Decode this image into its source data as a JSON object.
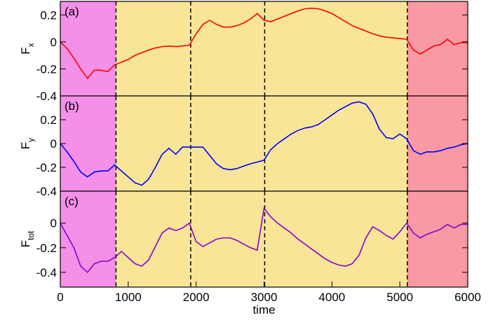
{
  "chart_data": [
    {
      "type": "line",
      "annotation": "(a)",
      "ylabel": "F",
      "ylabel_subscript": "x",
      "xlim": [
        0,
        6000
      ],
      "ylim": [
        -0.4,
        0.3
      ],
      "yticks": [
        -0.4,
        -0.2,
        0,
        0.2
      ],
      "regions": [
        {
          "from": 0,
          "to": 820,
          "color": "#f490e8"
        },
        {
          "from": 820,
          "to": 5110,
          "color": "#f8e598"
        },
        {
          "from": 5110,
          "to": 6000,
          "color": "#f899a3"
        }
      ],
      "dividers": [
        820,
        1920,
        3010,
        5110
      ],
      "x": [
        0,
        100,
        200,
        300,
        400,
        500,
        600,
        700,
        800,
        900,
        1000,
        1100,
        1200,
        1300,
        1400,
        1500,
        1600,
        1700,
        1800,
        1900,
        2000,
        2100,
        2200,
        2300,
        2400,
        2500,
        2600,
        2700,
        2800,
        2900,
        3000,
        3100,
        3200,
        3300,
        3400,
        3500,
        3600,
        3700,
        3800,
        3900,
        4000,
        4100,
        4200,
        4300,
        4400,
        4500,
        4600,
        4700,
        4800,
        4900,
        5000,
        5100,
        5200,
        5300,
        5400,
        5500,
        5600,
        5700,
        5800,
        5900,
        6000
      ],
      "series": [
        {
          "color": "#ff0000",
          "values": [
            0,
            -0.05,
            -0.12,
            -0.2,
            -0.27,
            -0.21,
            -0.21,
            -0.22,
            -0.17,
            -0.15,
            -0.13,
            -0.1,
            -0.08,
            -0.06,
            -0.045,
            -0.035,
            -0.03,
            -0.035,
            -0.03,
            -0.025,
            0.06,
            0.13,
            0.16,
            0.13,
            0.11,
            0.11,
            0.12,
            0.14,
            0.17,
            0.21,
            0.16,
            0.15,
            0.17,
            0.19,
            0.21,
            0.23,
            0.245,
            0.25,
            0.245,
            0.23,
            0.21,
            0.18,
            0.15,
            0.12,
            0.1,
            0.08,
            0.06,
            0.045,
            0.035,
            0.03,
            0.025,
            0.02,
            -0.06,
            -0.09,
            -0.06,
            -0.03,
            -0.02,
            0.02,
            -0.02,
            -0.005,
            -0.005
          ]
        }
      ]
    },
    {
      "type": "line",
      "annotation": "(b)",
      "ylabel": "F",
      "ylabel_subscript": "y",
      "xlim": [
        0,
        6000
      ],
      "ylim": [
        -0.4,
        0.4
      ],
      "yticks": [
        -0.4,
        -0.2,
        0,
        0.2
      ],
      "regions": [
        {
          "from": 0,
          "to": 820,
          "color": "#f490e8"
        },
        {
          "from": 820,
          "to": 5110,
          "color": "#f8e598"
        },
        {
          "from": 5110,
          "to": 6000,
          "color": "#f899a3"
        }
      ],
      "dividers": [
        820,
        1920,
        3010,
        5110
      ],
      "x": [
        0,
        100,
        200,
        300,
        400,
        500,
        600,
        700,
        800,
        900,
        1000,
        1100,
        1200,
        1300,
        1400,
        1500,
        1600,
        1700,
        1800,
        1900,
        2000,
        2100,
        2200,
        2300,
        2400,
        2500,
        2600,
        2700,
        2800,
        2900,
        3000,
        3100,
        3200,
        3300,
        3400,
        3500,
        3600,
        3700,
        3800,
        3900,
        4000,
        4100,
        4200,
        4300,
        4400,
        4500,
        4600,
        4700,
        4800,
        4900,
        5000,
        5100,
        5200,
        5300,
        5400,
        5500,
        5600,
        5700,
        5800,
        5900,
        6000
      ],
      "series": [
        {
          "color": "#0000ff",
          "values": [
            0,
            -0.07,
            -0.15,
            -0.24,
            -0.28,
            -0.24,
            -0.23,
            -0.23,
            -0.18,
            -0.23,
            -0.28,
            -0.33,
            -0.35,
            -0.3,
            -0.2,
            -0.09,
            -0.04,
            -0.09,
            -0.03,
            -0.03,
            -0.03,
            -0.03,
            -0.1,
            -0.17,
            -0.21,
            -0.22,
            -0.21,
            -0.19,
            -0.17,
            -0.155,
            -0.14,
            -0.05,
            0,
            0.04,
            0.08,
            0.11,
            0.13,
            0.14,
            0.16,
            0.2,
            0.24,
            0.28,
            0.31,
            0.34,
            0.35,
            0.33,
            0.25,
            0.12,
            0.05,
            0.04,
            0.08,
            0.04,
            -0.06,
            -0.09,
            -0.07,
            -0.07,
            -0.06,
            -0.04,
            -0.03,
            -0.01,
            0
          ]
        }
      ]
    },
    {
      "type": "line",
      "annotation": "(c)",
      "ylabel": "F",
      "ylabel_subscript": "tot",
      "xlabel": "time",
      "xlim": [
        0,
        6000
      ],
      "xticks": [
        0,
        1000,
        2000,
        3000,
        4000,
        5000,
        6000
      ],
      "ylim": [
        -0.52,
        0.26
      ],
      "yticks": [
        -0.4,
        -0.2,
        0
      ],
      "regions": [
        {
          "from": 0,
          "to": 820,
          "color": "#f490e8"
        },
        {
          "from": 820,
          "to": 5110,
          "color": "#f8e598"
        },
        {
          "from": 5110,
          "to": 6000,
          "color": "#f899a3"
        }
      ],
      "dividers": [
        820,
        1920,
        3010,
        5110
      ],
      "x": [
        0,
        100,
        200,
        300,
        400,
        500,
        600,
        700,
        800,
        900,
        1000,
        1100,
        1200,
        1300,
        1400,
        1500,
        1600,
        1700,
        1800,
        1900,
        2000,
        2100,
        2200,
        2300,
        2400,
        2500,
        2600,
        2700,
        2800,
        2900,
        3000,
        3100,
        3200,
        3300,
        3400,
        3500,
        3600,
        3700,
        3800,
        3900,
        4000,
        4100,
        4200,
        4300,
        4400,
        4500,
        4600,
        4700,
        4800,
        4900,
        5000,
        5100,
        5200,
        5300,
        5400,
        5500,
        5600,
        5700,
        5800,
        5900,
        6000
      ],
      "series": [
        {
          "color": "#8b00cc",
          "values": [
            0,
            -0.1,
            -0.2,
            -0.35,
            -0.4,
            -0.33,
            -0.31,
            -0.31,
            -0.28,
            -0.23,
            -0.28,
            -0.33,
            -0.35,
            -0.3,
            -0.19,
            -0.08,
            -0.04,
            -0.06,
            -0.04,
            0.0,
            -0.15,
            -0.19,
            -0.16,
            -0.13,
            -0.12,
            -0.12,
            -0.14,
            -0.17,
            -0.2,
            -0.22,
            0.12,
            0.05,
            0,
            -0.04,
            -0.08,
            -0.13,
            -0.17,
            -0.21,
            -0.25,
            -0.29,
            -0.32,
            -0.34,
            -0.35,
            -0.33,
            -0.26,
            -0.12,
            -0.03,
            -0.06,
            -0.1,
            -0.13,
            -0.07,
            0,
            -0.08,
            -0.12,
            -0.09,
            -0.07,
            -0.05,
            -0.01,
            -0.04,
            -0.01,
            -0.01
          ]
        }
      ]
    }
  ]
}
